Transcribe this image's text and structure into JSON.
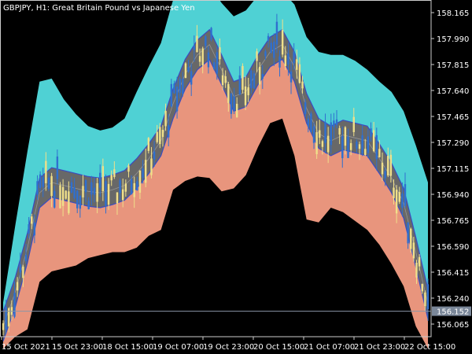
{
  "chart_data": {
    "type": "candlestick",
    "title": "GBPJPY, H1:  Great Britain Pound vs Japanese Yen",
    "ylim": [
      155.98,
      158.25
    ],
    "y_ticks": [
      "158.165",
      "157.990",
      "157.815",
      "157.640",
      "157.465",
      "157.290",
      "157.115",
      "156.940",
      "156.765",
      "156.590",
      "156.415",
      "156.240",
      "156.065"
    ],
    "x_ticks": [
      "15 Oct 2021",
      "15 Oct 23:00",
      "18 Oct 15:00",
      "19 Oct 07:00",
      "19 Oct 23:00",
      "20 Oct 15:00",
      "21 Oct 07:00",
      "21 Oct 23:00",
      "22 Oct 15:00"
    ],
    "current_price": "156.152",
    "colors": {
      "background": "#000000",
      "outer_band": "#4fd1d4",
      "inner_band": "#e8957d",
      "channel": "#7a7a7a",
      "channel_line": "#3b4cc0",
      "bull_candle": "#f0e08a",
      "bear_candle": "#2f6fcf",
      "axis_text": "#ffffff",
      "price_box": "#7a8799"
    },
    "channel_mid": [
      156.05,
      156.28,
      156.58,
      156.95,
      157.02,
      157.0,
      156.98,
      156.96,
      156.95,
      156.97,
      157.0,
      157.08,
      157.18,
      157.3,
      157.55,
      157.75,
      157.88,
      157.95,
      157.78,
      157.6,
      157.63,
      157.78,
      157.9,
      157.95,
      157.8,
      157.52,
      157.35,
      157.3,
      157.34,
      157.32,
      157.3,
      157.18,
      157.05,
      156.88,
      156.55,
      156.2
    ],
    "upper_band_offset": [
      0.16,
      0.45,
      0.65,
      0.75,
      0.7,
      0.58,
      0.5,
      0.44,
      0.42,
      0.42,
      0.45,
      0.55,
      0.62,
      0.66,
      0.7,
      0.55,
      0.38,
      0.4,
      0.45,
      0.54,
      0.55,
      0.5,
      0.42,
      0.36,
      0.42,
      0.48,
      0.55,
      0.58,
      0.54,
      0.52,
      0.48,
      0.52,
      0.58,
      0.62,
      0.72,
      0.82
    ],
    "lower_band_offset": [
      0.15,
      0.3,
      0.55,
      0.6,
      0.6,
      0.56,
      0.52,
      0.45,
      0.42,
      0.42,
      0.45,
      0.5,
      0.52,
      0.6,
      0.58,
      0.72,
      0.82,
      0.9,
      0.82,
      0.62,
      0.56,
      0.52,
      0.48,
      0.5,
      0.6,
      0.75,
      0.6,
      0.45,
      0.52,
      0.56,
      0.6,
      0.58,
      0.58,
      0.56,
      0.5,
      0.3
    ]
  }
}
